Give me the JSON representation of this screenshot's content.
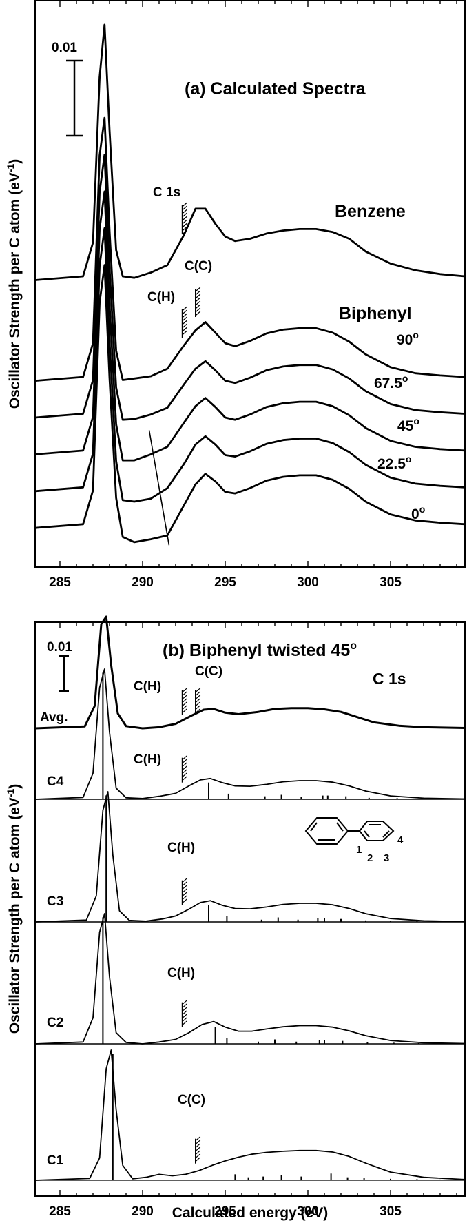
{
  "colors": {
    "ink": "#000000",
    "background": "#ffffff"
  },
  "chart_data": [
    {
      "type": "line",
      "title": "(a) Calculated Spectra",
      "ylabel": "Oscillator Strength per C atom (eV",
      "ylabel_sup": "-1",
      "xlabel": "",
      "x_ticks": [
        "285",
        "290",
        "295",
        "300",
        "305"
      ],
      "xlim": [
        283.5,
        309.5
      ],
      "scale_bar": {
        "label": "0.01",
        "value": 0.01
      },
      "labels": {
        "benzene": "Benzene",
        "biphenyl": "Biphenyl",
        "c1s": "C 1s",
        "ch": "C(H)",
        "cc": "C(C)"
      },
      "ionization_edges_eV": {
        "benzene_c1s": 292.4,
        "biphenyl_CH": 292.4,
        "biphenyl_CC": 293.2
      },
      "series": [
        {
          "name": "Benzene",
          "offset": 0.035,
          "x": [
            283.5,
            286.4,
            287.0,
            287.4,
            287.7,
            288.0,
            288.4,
            288.8,
            289.5,
            290.5,
            291.5,
            292.5,
            293.2,
            293.8,
            294.4,
            295.0,
            295.6,
            296.5,
            297.5,
            298.5,
            299.5,
            300.5,
            301.5,
            302.5,
            303.5,
            305.0,
            306.5,
            308.0,
            309.5
          ],
          "y": [
            0.0,
            0.0005,
            0.005,
            0.027,
            0.034,
            0.02,
            0.004,
            0.0005,
            0.0003,
            0.001,
            0.002,
            0.006,
            0.0095,
            0.0095,
            0.0075,
            0.0058,
            0.0052,
            0.0055,
            0.0062,
            0.0066,
            0.0068,
            0.0068,
            0.0064,
            0.0055,
            0.0038,
            0.0022,
            0.0013,
            0.0008,
            0.0005
          ]
        },
        {
          "name": "90°",
          "offset": 0.0216,
          "x": [
            283.5,
            286.4,
            287.0,
            287.4,
            287.7,
            288.0,
            288.4,
            288.8,
            289.5,
            290.5,
            291.5,
            292.5,
            293.2,
            293.8,
            294.4,
            295.0,
            295.6,
            296.5,
            297.5,
            298.5,
            299.5,
            300.5,
            301.5,
            302.5,
            303.5,
            305.0,
            306.5,
            308.0,
            309.5
          ],
          "y": [
            0.0,
            0.0005,
            0.005,
            0.03,
            0.035,
            0.02,
            0.004,
            0.0001,
            0.0003,
            0.0006,
            0.0016,
            0.0047,
            0.0067,
            0.0078,
            0.0064,
            0.005,
            0.0046,
            0.0053,
            0.0063,
            0.0068,
            0.007,
            0.007,
            0.0064,
            0.0052,
            0.0035,
            0.0018,
            0.001,
            0.0007,
            0.0005
          ]
        },
        {
          "name": "67.5°",
          "offset": 0.0167,
          "x": [
            283.5,
            286.4,
            287.0,
            287.4,
            287.7,
            288.0,
            288.4,
            288.8,
            289.5,
            290.5,
            291.5,
            292.5,
            293.2,
            293.8,
            294.4,
            295.0,
            295.6,
            296.5,
            297.5,
            298.5,
            299.5,
            300.5,
            301.5,
            302.5,
            303.5,
            305.0,
            306.5,
            308.0,
            309.5
          ],
          "y": [
            0.0,
            0.0005,
            0.005,
            0.03,
            0.035,
            0.02,
            0.004,
            -0.0003,
            -0.0002,
            0.0004,
            0.0013,
            0.0044,
            0.0065,
            0.0075,
            0.0063,
            0.0049,
            0.0046,
            0.0053,
            0.0063,
            0.0068,
            0.007,
            0.007,
            0.0064,
            0.0052,
            0.0035,
            0.0018,
            0.001,
            0.0007,
            0.0005
          ]
        },
        {
          "name": "45°",
          "offset": 0.0118,
          "x": [
            283.5,
            286.4,
            287.0,
            287.4,
            287.7,
            288.0,
            288.4,
            288.8,
            289.5,
            290.5,
            291.5,
            292.5,
            293.2,
            293.8,
            294.4,
            295.0,
            295.6,
            296.5,
            297.5,
            298.5,
            299.5,
            300.5,
            301.5,
            302.5,
            303.5,
            305.0,
            306.5,
            308.0,
            309.5
          ],
          "y": [
            0.0,
            0.0005,
            0.005,
            0.03,
            0.035,
            0.02,
            0.004,
            -0.0008,
            -0.0008,
            0.0,
            0.001,
            0.0042,
            0.0064,
            0.0075,
            0.0063,
            0.0049,
            0.0046,
            0.0053,
            0.0063,
            0.0068,
            0.007,
            0.007,
            0.0064,
            0.0052,
            0.0035,
            0.0018,
            0.001,
            0.0007,
            0.0005
          ]
        },
        {
          "name": "22.5°",
          "offset": 0.0069,
          "x": [
            283.5,
            286.4,
            287.0,
            287.4,
            287.7,
            288.0,
            288.4,
            288.8,
            289.5,
            290.5,
            291.5,
            292.5,
            293.2,
            293.8,
            294.4,
            295.0,
            295.6,
            296.5,
            297.5,
            298.5,
            299.5,
            300.5,
            301.5,
            302.5,
            303.5,
            305.0,
            306.5,
            308.0,
            309.5
          ],
          "y": [
            0.0,
            0.0005,
            0.005,
            0.03,
            0.035,
            0.02,
            0.004,
            -0.0012,
            -0.0014,
            -0.001,
            0.0004,
            0.0036,
            0.0062,
            0.0073,
            0.0062,
            0.0048,
            0.0046,
            0.0053,
            0.0063,
            0.0068,
            0.007,
            0.007,
            0.0064,
            0.0052,
            0.0035,
            0.0018,
            0.001,
            0.0007,
            0.0005
          ]
        },
        {
          "name": "0°",
          "offset": 0.002,
          "x": [
            283.5,
            286.4,
            287.0,
            287.4,
            287.7,
            288.0,
            288.4,
            288.8,
            289.5,
            290.5,
            291.5,
            292.5,
            293.2,
            293.8,
            294.4,
            295.0,
            295.6,
            296.5,
            297.5,
            298.5,
            299.5,
            300.5,
            301.5,
            302.5,
            303.5,
            305.0,
            306.5,
            308.0,
            309.5
          ],
          "y": [
            0.0,
            0.0005,
            0.005,
            0.03,
            0.035,
            0.02,
            0.004,
            -0.0012,
            -0.0019,
            -0.0015,
            -0.001,
            0.003,
            0.0058,
            0.0072,
            0.0062,
            0.0048,
            0.0046,
            0.0053,
            0.0063,
            0.0068,
            0.007,
            0.007,
            0.0064,
            0.0052,
            0.0035,
            0.0018,
            0.001,
            0.0007,
            0.0005
          ]
        }
      ],
      "angle_labels": [
        "90",
        "67.5",
        "45",
        "22.5",
        "0"
      ],
      "degree_symbol": "o",
      "trend_line_eV": [
        [
          290.4,
          0.015
        ],
        [
          291.6,
          -0.0003
        ]
      ]
    },
    {
      "type": "line",
      "title": "(b) Biphenyl twisted 45",
      "title_sup": "o",
      "subtitle": "C 1s",
      "ylabel": "Oscillator Strength per C atom (eV",
      "ylabel_sup": "-1",
      "xlabel": "Calculated energy (eV)",
      "x_ticks": [
        "285",
        "290",
        "295",
        "300",
        "305"
      ],
      "xlim": [
        283.5,
        309.5
      ],
      "scale_bar": {
        "label": "0.01",
        "value": 0.01
      },
      "molecule_site_labels": [
        "1",
        "2",
        "3",
        "4"
      ],
      "series": [
        {
          "name": "Avg.",
          "edges": [
            {
              "label": "C(H)",
              "eV": 292.4
            },
            {
              "label": "C(C)",
              "eV": 293.2
            }
          ],
          "x": [
            283.5,
            286.5,
            287.1,
            287.5,
            287.8,
            288.1,
            288.5,
            289.0,
            290.0,
            291.0,
            292.0,
            293.0,
            293.7,
            294.3,
            295.0,
            295.8,
            297.0,
            298.0,
            299.0,
            300.0,
            301.0,
            302.0,
            303.0,
            304.0,
            305.5,
            307.0,
            309.5
          ],
          "y": [
            0.0,
            0.0005,
            0.006,
            0.028,
            0.03,
            0.017,
            0.004,
            0.0006,
            0.0,
            0.0003,
            0.0012,
            0.0035,
            0.005,
            0.0052,
            0.0042,
            0.0038,
            0.0044,
            0.0052,
            0.0054,
            0.0054,
            0.0051,
            0.0044,
            0.003,
            0.0016,
            0.0007,
            0.0003,
            0.0001
          ]
        },
        {
          "name": "C4",
          "edges": [
            {
              "label": "C(H)",
              "eV": 292.4
            }
          ],
          "x": [
            283.5,
            286.4,
            287.0,
            287.4,
            287.7,
            288.0,
            288.4,
            289.0,
            290.0,
            291.0,
            292.0,
            292.8,
            293.5,
            294.1,
            294.8,
            295.6,
            296.5,
            297.5,
            298.5,
            299.5,
            300.5,
            301.5,
            302.5,
            303.5,
            305.0,
            307.0,
            309.5
          ],
          "y": [
            0.0,
            0.0005,
            0.007,
            0.03,
            0.035,
            0.018,
            0.003,
            0.0004,
            0.0002,
            0.0008,
            0.0016,
            0.0036,
            0.0052,
            0.0056,
            0.0045,
            0.0036,
            0.0035,
            0.004,
            0.0047,
            0.005,
            0.005,
            0.0046,
            0.0036,
            0.0022,
            0.0009,
            0.0003,
            0.0001
          ],
          "sticks": [
            [
              287.6,
              0.034
            ],
            [
              294.0,
              0.0045
            ],
            [
              295.2,
              0.0015
            ],
            [
              297.4,
              0.0008
            ],
            [
              298.4,
              0.0012
            ],
            [
              299.6,
              0.0006
            ],
            [
              300.9,
              0.001
            ],
            [
              301.2,
              0.001
            ],
            [
              302.3,
              0.0008
            ],
            [
              303.7,
              0.0004
            ],
            [
              305.4,
              0.0003
            ],
            [
              306.7,
              0.0002
            ],
            [
              308.0,
              0.0002
            ]
          ]
        },
        {
          "name": "C3",
          "edges": [
            {
              "label": "C(H)",
              "eV": 292.4
            }
          ],
          "x": [
            283.5,
            286.6,
            287.2,
            287.6,
            287.9,
            288.2,
            288.6,
            289.2,
            290.2,
            291.2,
            292.0,
            292.8,
            293.5,
            294.1,
            294.8,
            295.6,
            296.5,
            297.5,
            298.5,
            299.5,
            300.5,
            301.5,
            302.5,
            303.5,
            305.0,
            307.0,
            309.5
          ],
          "y": [
            0.0,
            0.0005,
            0.007,
            0.03,
            0.035,
            0.018,
            0.003,
            0.0004,
            0.0002,
            0.0008,
            0.0016,
            0.0034,
            0.0052,
            0.0057,
            0.0045,
            0.0036,
            0.0035,
            0.004,
            0.0047,
            0.005,
            0.005,
            0.0046,
            0.0036,
            0.0022,
            0.0009,
            0.0003,
            0.0001
          ],
          "sticks": [
            [
              287.8,
              0.034
            ],
            [
              294.0,
              0.0045
            ],
            [
              295.1,
              0.0015
            ],
            [
              297.2,
              0.0006
            ],
            [
              298.2,
              0.0012
            ],
            [
              299.4,
              0.0006
            ],
            [
              300.6,
              0.001
            ],
            [
              301.0,
              0.001
            ],
            [
              302.0,
              0.0008
            ],
            [
              303.5,
              0.0004
            ],
            [
              305.0,
              0.0003
            ],
            [
              306.6,
              0.0002
            ],
            [
              308.0,
              0.0002
            ]
          ]
        },
        {
          "name": "C2",
          "edges": [
            {
              "label": "C(H)",
              "eV": 292.4
            }
          ],
          "x": [
            283.5,
            286.4,
            287.0,
            287.4,
            287.7,
            288.0,
            288.4,
            289.0,
            290.0,
            291.0,
            292.0,
            292.8,
            293.6,
            294.3,
            295.0,
            295.8,
            296.6,
            297.5,
            298.5,
            299.5,
            300.5,
            301.5,
            302.5,
            303.5,
            305.0,
            307.0,
            309.5
          ],
          "y": [
            0.0,
            0.0005,
            0.007,
            0.03,
            0.035,
            0.018,
            0.003,
            0.0004,
            0.0,
            0.0005,
            0.0012,
            0.003,
            0.0052,
            0.006,
            0.0045,
            0.0034,
            0.0034,
            0.004,
            0.0046,
            0.0049,
            0.0049,
            0.0045,
            0.0035,
            0.0022,
            0.0009,
            0.0003,
            0.0001
          ],
          "sticks": [
            [
              287.6,
              0.034
            ],
            [
              294.4,
              0.0045
            ],
            [
              295.1,
              0.0015
            ],
            [
              297.0,
              0.0006
            ],
            [
              298.0,
              0.0012
            ],
            [
              299.3,
              0.0006
            ],
            [
              300.7,
              0.001
            ],
            [
              301.0,
              0.001
            ],
            [
              302.1,
              0.0008
            ],
            [
              303.6,
              0.0004
            ],
            [
              305.2,
              0.0003
            ],
            [
              306.7,
              0.0002
            ],
            [
              308.0,
              0.0002
            ]
          ]
        },
        {
          "name": "C1",
          "edges": [
            {
              "label": "C(C)",
              "eV": 293.2
            }
          ],
          "x": [
            283.5,
            286.8,
            287.4,
            287.8,
            288.1,
            288.4,
            288.8,
            289.4,
            290.2,
            291.0,
            291.8,
            292.6,
            293.4,
            294.2,
            295.0,
            295.8,
            296.6,
            297.5,
            298.5,
            299.5,
            300.5,
            301.5,
            302.5,
            303.5,
            305.0,
            307.0,
            309.5
          ],
          "y": [
            0.0,
            0.0005,
            0.006,
            0.03,
            0.035,
            0.019,
            0.004,
            0.0004,
            0.0008,
            0.0016,
            0.0012,
            0.0016,
            0.0026,
            0.004,
            0.0052,
            0.0062,
            0.007,
            0.0075,
            0.0078,
            0.008,
            0.008,
            0.0076,
            0.0064,
            0.0046,
            0.0022,
            0.0008,
            0.0002
          ],
          "sticks": [
            [
              288.2,
              0.034
            ],
            [
              295.6,
              0.0016
            ],
            [
              296.4,
              0.0008
            ],
            [
              297.3,
              0.001
            ],
            [
              298.4,
              0.0014
            ],
            [
              299.6,
              0.001
            ],
            [
              301.4,
              0.0018
            ],
            [
              302.4,
              0.0008
            ],
            [
              303.4,
              0.0006
            ],
            [
              305.0,
              0.0004
            ],
            [
              306.6,
              0.0003
            ],
            [
              308.0,
              0.0002
            ]
          ]
        }
      ]
    }
  ]
}
